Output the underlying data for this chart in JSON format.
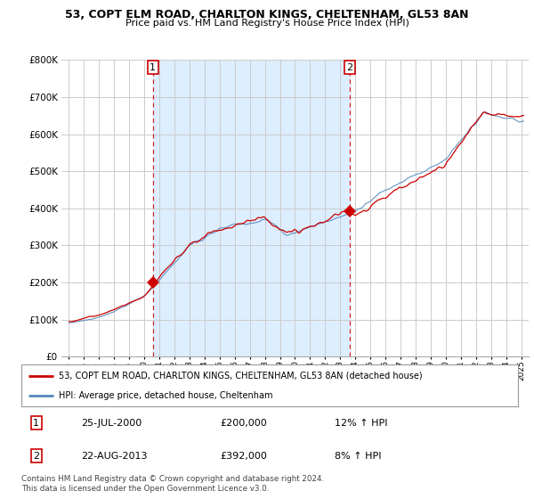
{
  "title1": "53, COPT ELM ROAD, CHARLTON KINGS, CHELTENHAM, GL53 8AN",
  "title2": "Price paid vs. HM Land Registry's House Price Index (HPI)",
  "legend_line1": "53, COPT ELM ROAD, CHARLTON KINGS, CHELTENHAM, GL53 8AN (detached house)",
  "legend_line2": "HPI: Average price, detached house, Cheltenham",
  "table_row1": [
    "1",
    "25-JUL-2000",
    "£200,000",
    "12% ↑ HPI"
  ],
  "table_row2": [
    "2",
    "22-AUG-2013",
    "£392,000",
    "8% ↑ HPI"
  ],
  "footnote": "Contains HM Land Registry data © Crown copyright and database right 2024.\nThis data is licensed under the Open Government Licence v3.0.",
  "sale1_year": 2000.57,
  "sale1_price": 200000,
  "sale2_year": 2013.64,
  "sale2_price": 392000,
  "red_color": "#cc0000",
  "blue_color": "#5588bb",
  "shade_color": "#ddeeff",
  "vline_color": "#cc0000",
  "grid_color": "#cccccc",
  "bg_color": "#ffffff",
  "ylim": [
    0,
    800000
  ],
  "xlim_start": 1994.5,
  "xlim_end": 2025.5,
  "yticks": [
    0,
    100000,
    200000,
    300000,
    400000,
    500000,
    600000,
    700000,
    800000
  ]
}
